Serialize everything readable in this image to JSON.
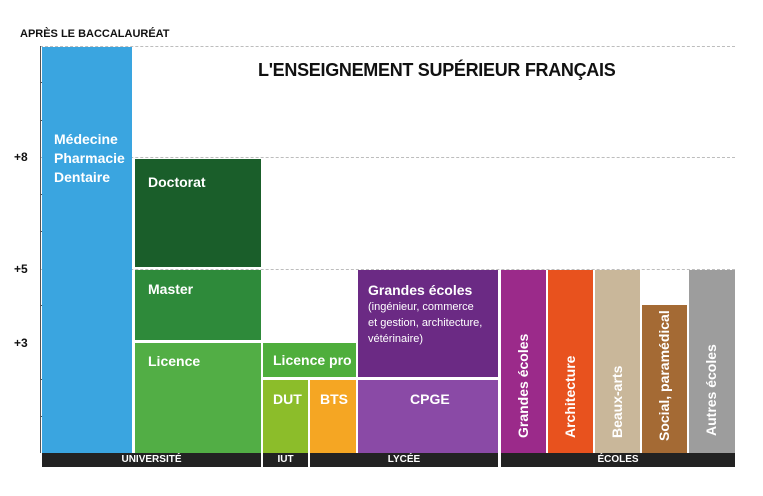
{
  "header_label": "APRÈS LE BACCALAURÉAT",
  "title": "L'ENSEIGNEMENT SUPÉRIEUR FRANÇAIS",
  "y_labels": [
    "+8",
    "+5",
    "+3"
  ],
  "blocks": {
    "medecine": [
      "Médecine",
      "Pharmacie",
      "Dentaire"
    ],
    "doctorat": "Doctorat",
    "master": "Master",
    "licence": "Licence",
    "licence_pro": "Licence pro",
    "dut": "DUT",
    "bts": "BTS",
    "grandes_ecoles_title": "Grandes écoles",
    "grandes_ecoles_detail": [
      "(ingénieur, commerce",
      "et gestion, architecture,",
      "vétérinaire)"
    ],
    "cpge": "CPGE",
    "ecoles_grandes": "Grandes écoles",
    "architecture": "Architecture",
    "beaux_arts": "Beaux-arts",
    "social": "Social, paramédical",
    "autres": "Autres écoles"
  },
  "bands": [
    "UNIVERSITÉ",
    "IUT",
    "LYCÉE",
    "ÉCOLES"
  ],
  "colors": {
    "medecine": "#3aa5e0",
    "doctorat": "#1a5e2a",
    "master": "#2e8a3a",
    "licence": "#52ae45",
    "licence_pro": "#4fae3c",
    "dut": "#8cbd2a",
    "bts": "#f5a623",
    "grandes_ecoles": "#6b2a84",
    "cpge": "#8a4aa6",
    "ecoles_grandes": "#9b2a8a",
    "architecture": "#e8521e",
    "beaux_arts": "#c9b79a",
    "social": "#a46a34",
    "autres": "#9d9d9d"
  }
}
